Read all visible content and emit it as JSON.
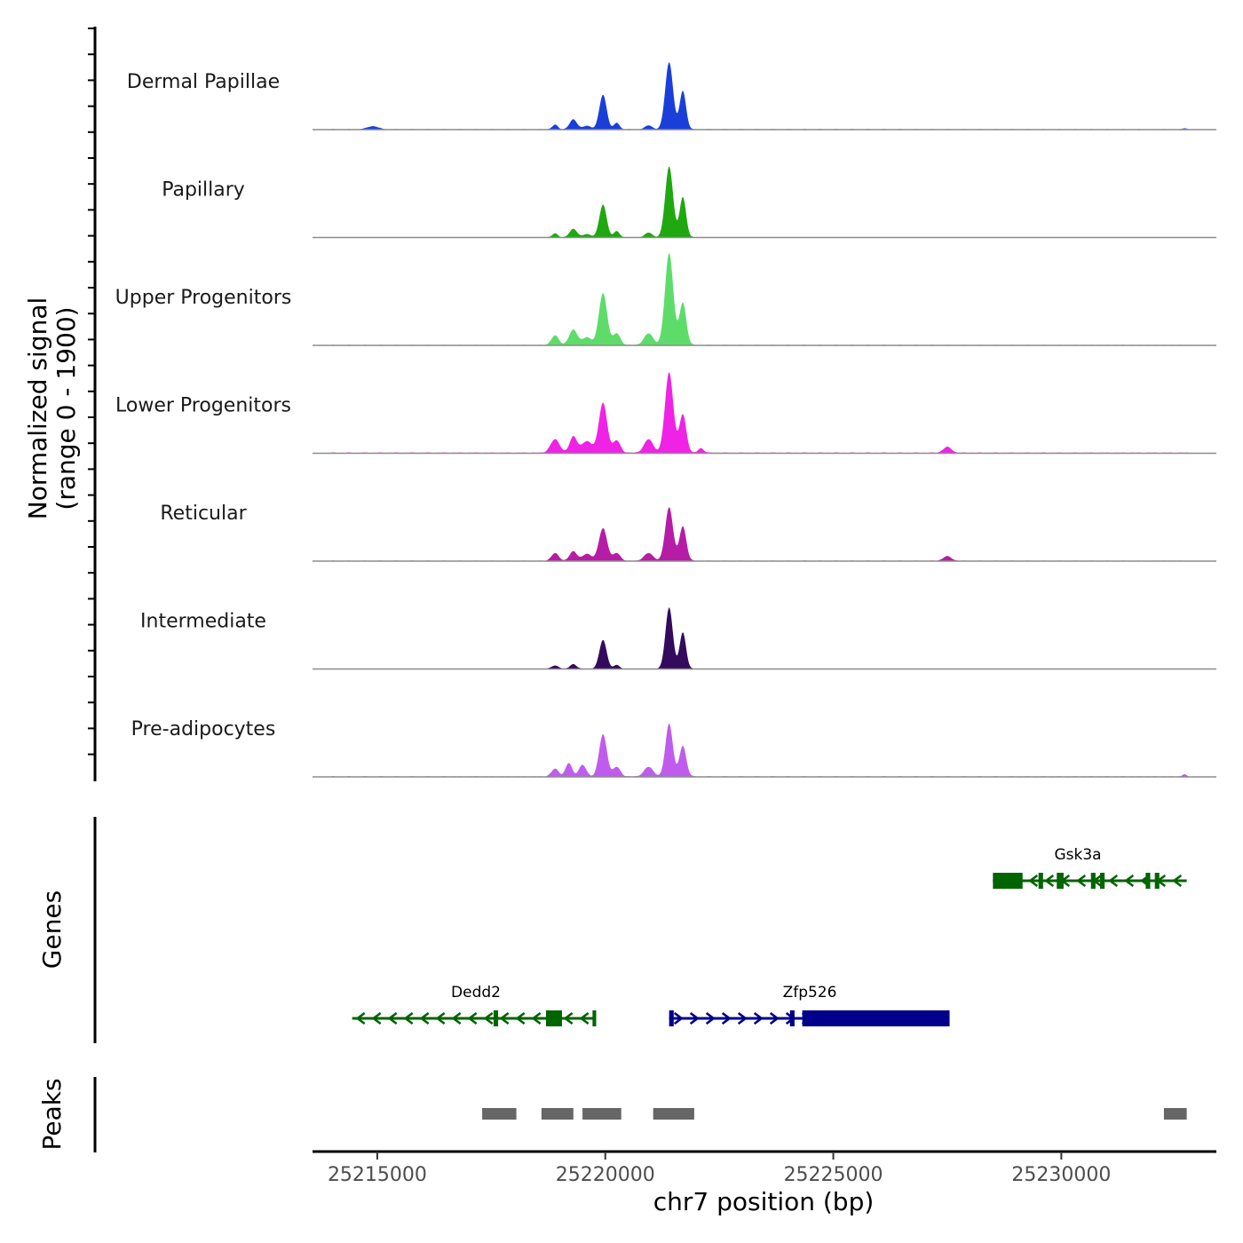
{
  "chart_data": {
    "type": "area",
    "title": "",
    "ylabel_line1": "Normalized signal",
    "ylabel_line2": "(range 0 - 1900)",
    "ylim": [
      0,
      1900
    ],
    "xlabel": "chr7 position (bp)",
    "xlim": [
      25213580,
      25233400
    ],
    "x_ticks": [
      25215000,
      25220000,
      25225000,
      25230000
    ],
    "x_tick_labels": [
      "25215000",
      "25220000",
      "25225000",
      "25230000"
    ],
    "tracks": [
      {
        "name": "Dermal Papillae",
        "color": "#1a3fd9",
        "peaks": [
          [
            25214900,
            80,
            120
          ],
          [
            25218900,
            120,
            60
          ],
          [
            25219300,
            260,
            80
          ],
          [
            25219600,
            90,
            90
          ],
          [
            25219950,
            900,
            80
          ],
          [
            25220250,
            170,
            60
          ],
          [
            25220950,
            100,
            80
          ],
          [
            25221400,
            1750,
            85
          ],
          [
            25221700,
            1000,
            70
          ],
          [
            25232700,
            25,
            40
          ]
        ],
        "noise": 10
      },
      {
        "name": "Papillary",
        "color": "#1fa80f",
        "peaks": [
          [
            25218900,
            100,
            60
          ],
          [
            25219300,
            220,
            80
          ],
          [
            25219600,
            80,
            90
          ],
          [
            25219950,
            850,
            80
          ],
          [
            25220250,
            160,
            60
          ],
          [
            25220950,
            120,
            80
          ],
          [
            25221400,
            1850,
            85
          ],
          [
            25221700,
            1050,
            70
          ]
        ],
        "noise": 8
      },
      {
        "name": "Upper Progenitors",
        "color": "#5ddc6a",
        "peaks": [
          [
            25218900,
            250,
            80
          ],
          [
            25219300,
            400,
            90
          ],
          [
            25219600,
            200,
            100
          ],
          [
            25219950,
            1350,
            90
          ],
          [
            25220250,
            300,
            80
          ],
          [
            25220950,
            300,
            100
          ],
          [
            25221400,
            2400,
            90
          ],
          [
            25221700,
            1100,
            75
          ]
        ],
        "noise": 12
      },
      {
        "name": "Lower Progenitors",
        "color": "#f022e6",
        "peaks": [
          [
            25218900,
            350,
            100
          ],
          [
            25219300,
            420,
            80
          ],
          [
            25219600,
            300,
            120
          ],
          [
            25219950,
            1300,
            90
          ],
          [
            25220250,
            320,
            80
          ],
          [
            25220950,
            350,
            100
          ],
          [
            25221400,
            2100,
            90
          ],
          [
            25221700,
            1000,
            75
          ],
          [
            25222100,
            120,
            60
          ],
          [
            25227500,
            150,
            90
          ]
        ],
        "noise": 15
      },
      {
        "name": "Reticular",
        "color": "#b61ca6",
        "peaks": [
          [
            25218900,
            200,
            80
          ],
          [
            25219300,
            250,
            80
          ],
          [
            25219600,
            180,
            100
          ],
          [
            25219950,
            850,
            90
          ],
          [
            25220250,
            200,
            80
          ],
          [
            25220950,
            200,
            100
          ],
          [
            25221400,
            1400,
            85
          ],
          [
            25221700,
            900,
            75
          ],
          [
            25227500,
            120,
            90
          ]
        ],
        "noise": 10
      },
      {
        "name": "Intermediate",
        "color": "#330a5c",
        "peaks": [
          [
            25218900,
            80,
            80
          ],
          [
            25219300,
            120,
            70
          ],
          [
            25219950,
            750,
            80
          ],
          [
            25220250,
            100,
            60
          ],
          [
            25221400,
            1600,
            80
          ],
          [
            25221700,
            950,
            70
          ]
        ],
        "noise": 8
      },
      {
        "name": "Pre-adipocytes",
        "color": "#c05ced",
        "peaks": [
          [
            25218900,
            200,
            80
          ],
          [
            25219200,
            350,
            70
          ],
          [
            25219500,
            300,
            80
          ],
          [
            25219950,
            1100,
            85
          ],
          [
            25220250,
            250,
            80
          ],
          [
            25220950,
            250,
            100
          ],
          [
            25221400,
            1380,
            80
          ],
          [
            25221700,
            800,
            75
          ],
          [
            25232700,
            60,
            40
          ]
        ],
        "noise": 12
      }
    ],
    "genes": [
      {
        "name": "Dedd2",
        "strand": "-",
        "color": "#006400",
        "start": 25214450,
        "end": 25219800,
        "row": 2,
        "exons": [
          [
            25217550,
            25217650
          ],
          [
            25218700,
            25219050
          ],
          [
            25219720,
            25219800
          ]
        ]
      },
      {
        "name": "Zfp526",
        "strand": "+",
        "color": "#00008b",
        "start": 25221400,
        "end": 25227550,
        "row": 2,
        "exons": [
          [
            25221400,
            25221500
          ],
          [
            25224050,
            25224150
          ],
          [
            25224320,
            25227550
          ]
        ]
      },
      {
        "name": "Gsk3a",
        "strand": "-",
        "color": "#006400",
        "start": 25228500,
        "end": 25232750,
        "row": 1,
        "exons": [
          [
            25228500,
            25229150
          ],
          [
            25229500,
            25229600
          ],
          [
            25229900,
            25230050
          ],
          [
            25230650,
            25230750
          ],
          [
            25230850,
            25230950
          ],
          [
            25231850,
            25231950
          ],
          [
            25232050,
            25232150
          ]
        ]
      }
    ],
    "peaks_track": [
      [
        25217300,
        25218050
      ],
      [
        25218600,
        25219300
      ],
      [
        25219500,
        25220350
      ],
      [
        25221050,
        25221950
      ],
      [
        25232250,
        25232750
      ]
    ]
  },
  "labels": {
    "genes_axis": "Genes",
    "peaks_axis": "Peaks"
  }
}
